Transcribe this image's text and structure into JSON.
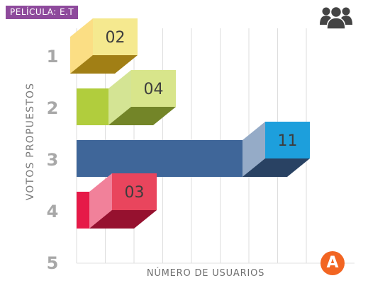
{
  "header": {
    "tag_label": "PELÍCULA: E.T",
    "tag_color": "#8e4a9c",
    "icon": "users-icon"
  },
  "footer": {
    "badge_label": "A",
    "badge_color": "#f26522"
  },
  "chart_data": {
    "type": "bar",
    "orientation": "horizontal",
    "style": "3d",
    "title": "",
    "xlabel": "NÚMERO DE USUARIOS",
    "ylabel": "VOTOS PROPUESTOS",
    "categories": [
      "1",
      "2",
      "3",
      "4",
      "5"
    ],
    "values": [
      2,
      4,
      11,
      3,
      null
    ],
    "value_labels": [
      "02",
      "04",
      "11",
      "03",
      ""
    ],
    "colors": [
      "#f7c320",
      "#b1cd3d",
      "#3f6699",
      "#e61a48",
      ""
    ],
    "label_box_colors": [
      "#f5e98f",
      "#d8e58b",
      "#1d9fdc",
      "#e9455d",
      ""
    ],
    "xlim": [
      0,
      13
    ],
    "grid": true
  }
}
